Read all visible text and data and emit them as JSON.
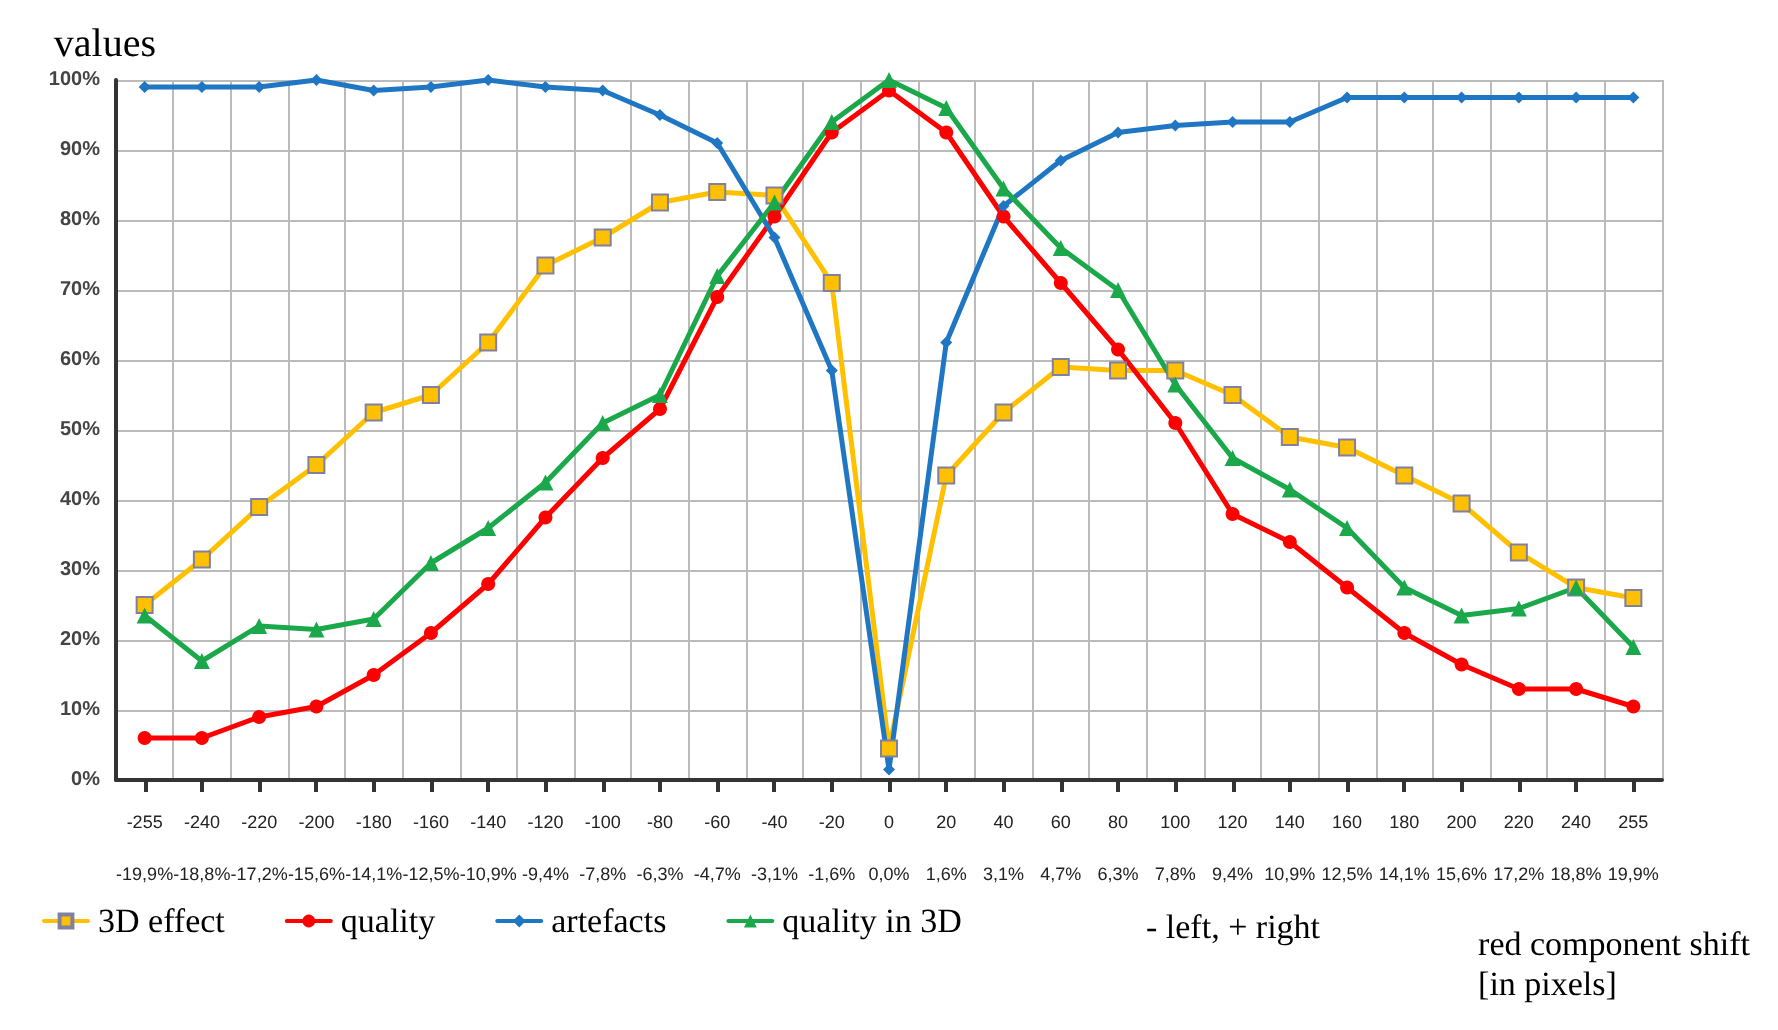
{
  "chart_data": {
    "type": "line",
    "ylabel": "values",
    "xlabel": "red component shift\n[in pixels]",
    "categories": [
      "-255\n-19,9%",
      "-240\n-18,8%",
      "-220\n-17,2%",
      "-200\n-15,6%",
      "-180\n-14,1%",
      "-160\n-12,5%",
      "-140\n-10,9%",
      "-120\n-9,4%",
      "-100\n-7,8%",
      "-80\n-6,3%",
      "-60\n-4,7%",
      "-40\n-3,1%",
      "-20\n-1,6%",
      "0\n0,0%",
      "20\n1,6%",
      "40\n3,1%",
      "60\n4,7%",
      "80\n6,3%",
      "100\n7,8%",
      "120\n9,4%",
      "140\n10,9%",
      "160\n12,5%",
      "180\n14,1%",
      "200\n15,6%",
      "220\n17,2%",
      "240\n18,8%",
      "255\n19,9%"
    ],
    "series": [
      {
        "name": "3D effect",
        "color": "#ffc000",
        "marker": "square",
        "values": [
          25,
          31.5,
          39,
          45,
          52.5,
          55,
          62.5,
          73.5,
          77.5,
          82.5,
          84,
          83.5,
          71,
          4.5,
          43.5,
          52.5,
          59,
          58.5,
          58.5,
          55,
          49,
          47.5,
          43.5,
          39.5,
          32.5,
          27.5,
          26
        ]
      },
      {
        "name": "quality",
        "color": "#ff0000",
        "marker": "circle",
        "values": [
          6,
          6,
          9,
          10.5,
          15,
          21,
          28,
          37.5,
          46,
          53,
          69,
          80.5,
          92.5,
          98.5,
          92.5,
          80.5,
          71,
          61.5,
          51,
          38,
          34,
          27.5,
          21,
          16.5,
          13,
          13,
          10.5
        ]
      },
      {
        "name": "artefacts",
        "color": "#1f77c4",
        "marker": "diamond",
        "values": [
          99,
          99,
          99,
          100,
          98.5,
          99,
          100,
          99,
          98.5,
          95,
          91,
          77.5,
          58.5,
          1.5,
          62.5,
          82,
          88.5,
          92.5,
          93.5,
          94,
          94,
          97.5,
          97.5,
          97.5,
          97.5,
          97.5,
          97.5
        ]
      },
      {
        "name": "quality in 3D",
        "color": "#1aa84a",
        "marker": "triangle",
        "values": [
          23.5,
          17,
          22,
          21.5,
          23,
          31,
          36,
          42.5,
          51,
          55,
          72,
          82.5,
          94,
          100,
          96,
          84.5,
          76,
          70,
          56.5,
          46,
          41.5,
          36,
          27.5,
          23.5,
          24.5,
          27.5,
          19
        ]
      }
    ],
    "ylim": [
      0,
      100
    ],
    "yticks": [
      {
        "value": 0,
        "label": "0%"
      },
      {
        "value": 10,
        "label": "10%"
      },
      {
        "value": 20,
        "label": "20%"
      },
      {
        "value": 30,
        "label": "30%"
      },
      {
        "value": 40,
        "label": "40%"
      },
      {
        "value": 50,
        "label": "50%"
      },
      {
        "value": 60,
        "label": "60%"
      },
      {
        "value": 70,
        "label": "70%"
      },
      {
        "value": 80,
        "label": "80%"
      },
      {
        "value": 90,
        "label": "90%"
      },
      {
        "value": 100,
        "label": "100%"
      }
    ],
    "grid": true,
    "legend": "bottom left",
    "line_style": "solid",
    "annotations": [
      "- left, + right"
    ]
  }
}
